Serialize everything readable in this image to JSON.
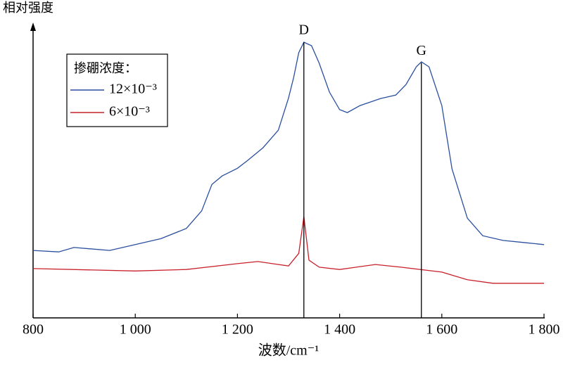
{
  "chart_data": {
    "type": "line",
    "y_label": "相对强度",
    "x_label": "波数/cm⁻¹",
    "legend_title": "掺硼浓度：",
    "xlim": [
      800,
      1800
    ],
    "xticks": [
      800,
      {
        "value": 1000,
        "label": "1 000"
      },
      {
        "value": 1200,
        "label": "1 200"
      },
      {
        "value": 1400,
        "label": "1 400"
      },
      {
        "value": 1600,
        "label": "1 600"
      },
      {
        "value": 1800,
        "label": "1 800"
      }
    ],
    "ylim": [
      0,
      100
    ],
    "annotations": [
      {
        "label": "D",
        "x": 1330,
        "y": 94
      },
      {
        "label": "G",
        "x": 1560,
        "y": 87
      }
    ],
    "series": [
      {
        "name": "12×10⁻³",
        "color": "#2a4f9e",
        "x": [
          800,
          850,
          880,
          950,
          1000,
          1050,
          1100,
          1130,
          1150,
          1170,
          1200,
          1220,
          1250,
          1280,
          1300,
          1310,
          1320,
          1330,
          1345,
          1360,
          1380,
          1400,
          1415,
          1440,
          1480,
          1510,
          1530,
          1550,
          1560,
          1575,
          1600,
          1620,
          1650,
          1680,
          1720,
          1760,
          1800
        ],
        "values": [
          23,
          22.5,
          24,
          23,
          25,
          27,
          30.5,
          36.5,
          45.5,
          48.4,
          51,
          53.7,
          58,
          64,
          75,
          82,
          90.4,
          94,
          92.8,
          86.8,
          77,
          71,
          70,
          72.4,
          74.8,
          76,
          79.6,
          85.6,
          87.3,
          85.6,
          72.4,
          50.8,
          34,
          28,
          26.4,
          25.7,
          25
        ]
      },
      {
        "name": "6×10⁻³",
        "color": "#c8202a",
        "x": [
          800,
          1000,
          1100,
          1200,
          1240,
          1300,
          1320,
          1330,
          1340,
          1360,
          1400,
          1470,
          1520,
          1600,
          1650,
          1700,
          1800
        ],
        "values": [
          16.8,
          16,
          16.5,
          18.5,
          19.2,
          17.7,
          22,
          34.5,
          19.7,
          17.3,
          16.5,
          18.2,
          17.3,
          15.6,
          13,
          11.8,
          11.8
        ]
      }
    ]
  }
}
